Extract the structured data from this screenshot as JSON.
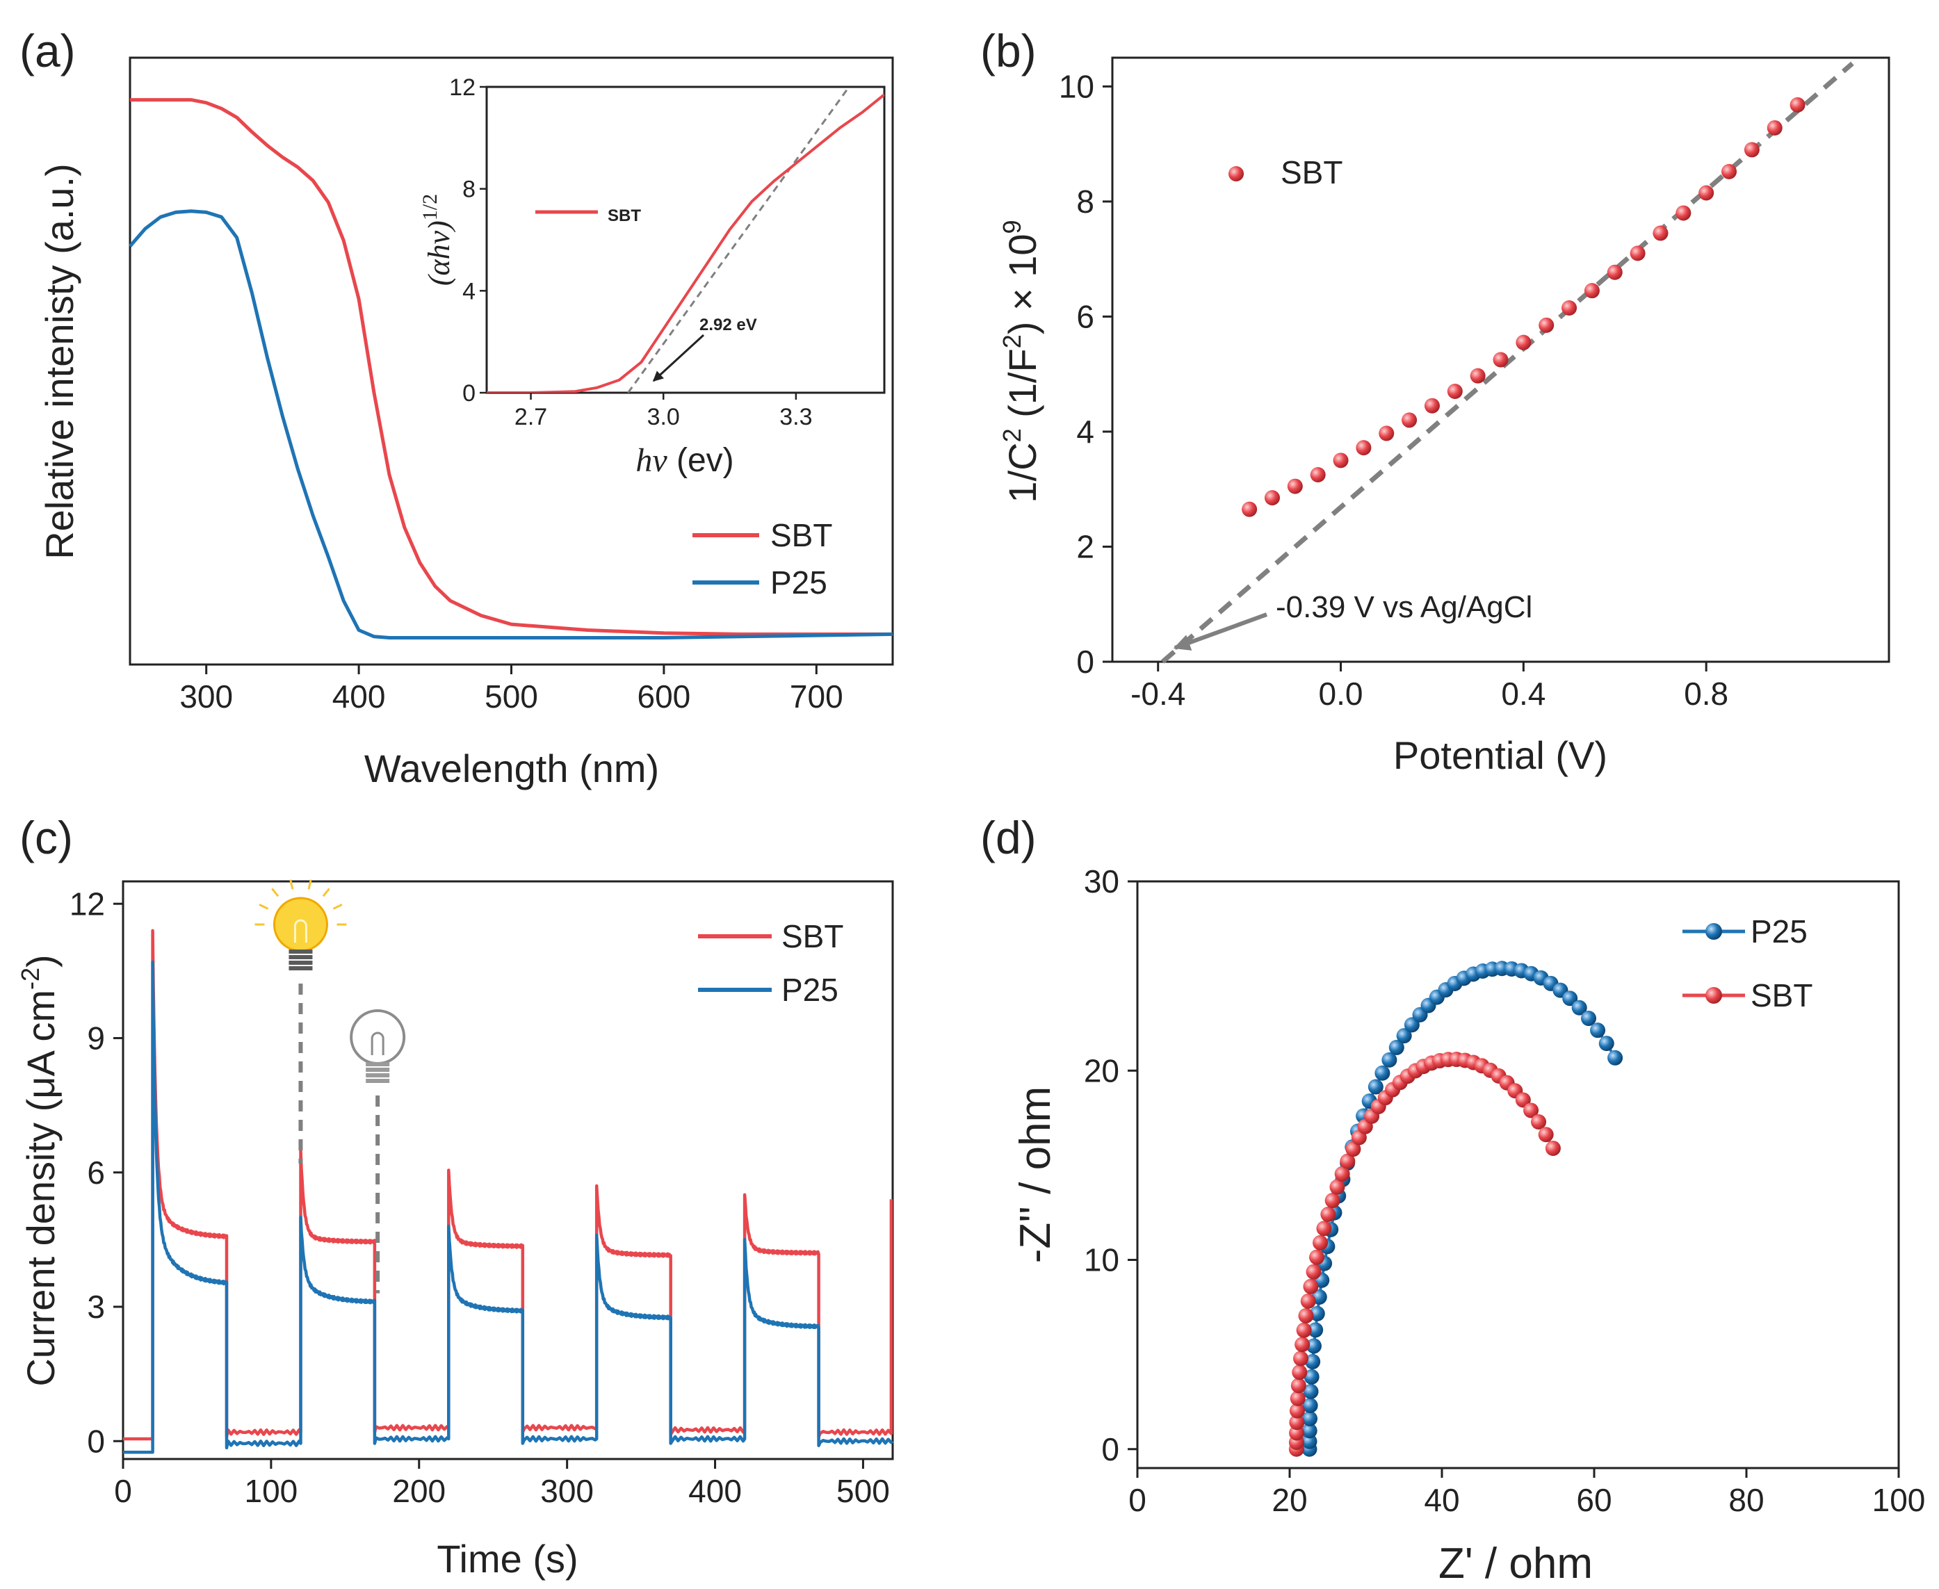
{
  "colors": {
    "sbt": "#e8474d",
    "p25": "#1f74b4",
    "fit": "#808080",
    "axis": "#222222",
    "bulb_on": "#f5b400",
    "bulb_off": "#8c8c8c"
  },
  "chart_data": [
    {
      "panel": "(a)",
      "type": "line",
      "title": "",
      "xlabel": "Wavelength (nm)",
      "ylabel": "Relative intenisty (a.u.)",
      "xlim": [
        250,
        750
      ],
      "ylim": [
        0,
        1
      ],
      "xticks": [
        "300",
        "400",
        "500",
        "600",
        "700"
      ],
      "legend_position": "bottom-right",
      "series": [
        {
          "name": "SBT",
          "color": "#e8474d",
          "x": [
            250,
            270,
            290,
            300,
            310,
            320,
            330,
            340,
            350,
            360,
            370,
            380,
            390,
            400,
            410,
            420,
            430,
            440,
            450,
            460,
            480,
            500,
            550,
            600,
            650,
            700,
            750
          ],
          "y": [
            0.94,
            0.94,
            0.94,
            0.935,
            0.925,
            0.91,
            0.885,
            0.862,
            0.842,
            0.825,
            0.802,
            0.765,
            0.7,
            0.6,
            0.44,
            0.3,
            0.21,
            0.15,
            0.11,
            0.085,
            0.06,
            0.045,
            0.035,
            0.03,
            0.028,
            0.028,
            0.028
          ]
        },
        {
          "name": "P25",
          "color": "#1f74b4",
          "x": [
            250,
            260,
            270,
            280,
            290,
            300,
            310,
            320,
            330,
            340,
            350,
            360,
            370,
            380,
            390,
            400,
            410,
            420,
            450,
            500,
            550,
            600,
            650,
            700,
            750
          ],
          "y": [
            0.69,
            0.72,
            0.74,
            0.748,
            0.75,
            0.748,
            0.74,
            0.705,
            0.61,
            0.5,
            0.4,
            0.31,
            0.23,
            0.16,
            0.085,
            0.035,
            0.024,
            0.022,
            0.022,
            0.022,
            0.022,
            0.022,
            0.024,
            0.026,
            0.028
          ]
        }
      ],
      "inset": {
        "type": "line",
        "xlabel_italic": "hν",
        "xlabel_rest": " (ev)",
        "ylabel_italic": "(αhν)",
        "ylabel_sup": "1/2",
        "xlim": [
          2.6,
          3.5
        ],
        "ylim": [
          0,
          12
        ],
        "xticks": [
          "2.7",
          "3.0",
          "3.3"
        ],
        "yticks": [
          "0",
          "4",
          "8",
          "12"
        ],
        "legend_position": "middle-left",
        "series": [
          {
            "name": "SBT",
            "color": "#e8474d",
            "x": [
              2.6,
              2.7,
              2.8,
              2.85,
              2.9,
              2.95,
              3.0,
              3.05,
              3.1,
              3.15,
              3.2,
              3.25,
              3.3,
              3.35,
              3.4,
              3.45,
              3.5
            ],
            "y": [
              0,
              0,
              0.05,
              0.2,
              0.5,
              1.2,
              2.5,
              3.8,
              5.1,
              6.4,
              7.5,
              8.3,
              9.0,
              9.7,
              10.4,
              11.0,
              11.7
            ]
          }
        ],
        "fit_line": {
          "x": [
            2.92,
            3.42
          ],
          "y": [
            0,
            12
          ]
        },
        "annotation": "2.92 eV",
        "annotation_point": [
          2.94,
          0
        ]
      }
    },
    {
      "panel": "(b)",
      "type": "scatter",
      "title": "",
      "xlabel": "Potential (V)",
      "ylabel_parts": [
        "1/C",
        "2",
        " (1/F",
        "2",
        ") × 10",
        "9"
      ],
      "xlim": [
        -0.5,
        1.2
      ],
      "ylim": [
        0,
        10.5
      ],
      "xticks": [
        "-0.4",
        "0.0",
        "0.4",
        "0.8"
      ],
      "yticks": [
        "0",
        "2",
        "4",
        "6",
        "8",
        "10"
      ],
      "legend_position": "top-left",
      "series": [
        {
          "name": "SBT",
          "color": "#e8474d",
          "x": [
            -0.2,
            -0.15,
            -0.1,
            -0.05,
            0.0,
            0.05,
            0.1,
            0.15,
            0.2,
            0.25,
            0.3,
            0.35,
            0.4,
            0.45,
            0.5,
            0.55,
            0.6,
            0.65,
            0.7,
            0.75,
            0.8,
            0.85,
            0.9,
            0.95,
            1.0
          ],
          "y": [
            2.65,
            2.85,
            3.05,
            3.25,
            3.5,
            3.72,
            3.97,
            4.2,
            4.45,
            4.7,
            4.97,
            5.25,
            5.55,
            5.85,
            6.15,
            6.45,
            6.77,
            7.1,
            7.45,
            7.8,
            8.15,
            8.52,
            8.9,
            9.28,
            9.68
          ]
        }
      ],
      "fit_line": {
        "x": [
          -0.39,
          1.12
        ],
        "y": [
          0,
          10.4
        ]
      },
      "annotation": "-0.39 V vs Ag/AgCl",
      "annotation_point": [
        -0.37,
        0.1
      ]
    },
    {
      "panel": "(c)",
      "type": "line",
      "title": "",
      "xlabel": "Time (s)",
      "ylabel_main": "Current density (μA cm",
      "ylabel_sup": "-2",
      "ylabel_end": ")",
      "xlim": [
        0,
        520
      ],
      "ylim": [
        -0.4,
        12.5
      ],
      "xticks": [
        "0",
        "100",
        "200",
        "300",
        "400",
        "500"
      ],
      "yticks": [
        "0",
        "3",
        "6",
        "9",
        "12"
      ],
      "legend_position": "top-right",
      "light_on_times": [
        20,
        120,
        220,
        320,
        420
      ],
      "light_off_times": [
        70,
        170,
        270,
        370,
        470
      ],
      "bulb_on_time": 120,
      "bulb_off_time": 172,
      "series": [
        {
          "name": "SBT",
          "color": "#e8474d",
          "cycles": [
            {
              "on": 20,
              "off": 70,
              "peak": 11.4,
              "mid": 5.3,
              "end": 4.55,
              "dark": 0.2
            },
            {
              "on": 120,
              "off": 170,
              "peak": 6.5,
              "mid": 4.6,
              "end": 4.45,
              "dark": 0.3
            },
            {
              "on": 220,
              "off": 270,
              "peak": 6.05,
              "mid": 4.5,
              "end": 4.35,
              "dark": 0.3
            },
            {
              "on": 320,
              "off": 370,
              "peak": 5.7,
              "mid": 4.3,
              "end": 4.15,
              "dark": 0.25
            },
            {
              "on": 420,
              "off": 470,
              "peak": 5.5,
              "mid": 4.3,
              "end": 4.2,
              "dark": 0.2
            }
          ],
          "final_rise": 5.4
        },
        {
          "name": "P25",
          "color": "#1f74b4",
          "cycles": [
            {
              "on": 20,
              "off": 70,
              "peak": 10.7,
              "mid": 4.8,
              "end": 3.5,
              "dark": -0.05
            },
            {
              "on": 120,
              "off": 170,
              "peak": 5.0,
              "mid": 3.6,
              "end": 3.1,
              "dark": 0.05
            },
            {
              "on": 220,
              "off": 270,
              "peak": 4.8,
              "mid": 3.3,
              "end": 2.9,
              "dark": 0.05
            },
            {
              "on": 320,
              "off": 370,
              "peak": 4.6,
              "mid": 3.1,
              "end": 2.75,
              "dark": 0.05
            },
            {
              "on": 420,
              "off": 470,
              "peak": 4.5,
              "mid": 2.9,
              "end": 2.55,
              "dark": 0.0
            }
          ]
        }
      ]
    },
    {
      "panel": "(d)",
      "type": "scatter",
      "title": "",
      "xlabel": "Z' / ohm",
      "ylabel": "-Z'' / ohm",
      "xlim": [
        0,
        100
      ],
      "ylim": [
        -1,
        30
      ],
      "xticks": [
        "0",
        "20",
        "40",
        "60",
        "80",
        "100"
      ],
      "yticks": [
        "0",
        "10",
        "20",
        "30"
      ],
      "legend_position": "top-right",
      "series": [
        {
          "name": "P25",
          "color": "#1f74b4",
          "center": 48,
          "radius": 25.4,
          "phi_start": 180,
          "phi_end": 54.5,
          "points": 52
        },
        {
          "name": "SBT",
          "color": "#e8474d",
          "center": 41.5,
          "radius": 20.6,
          "phi_start": 180,
          "phi_end": 50.5,
          "points": 50
        }
      ]
    }
  ]
}
